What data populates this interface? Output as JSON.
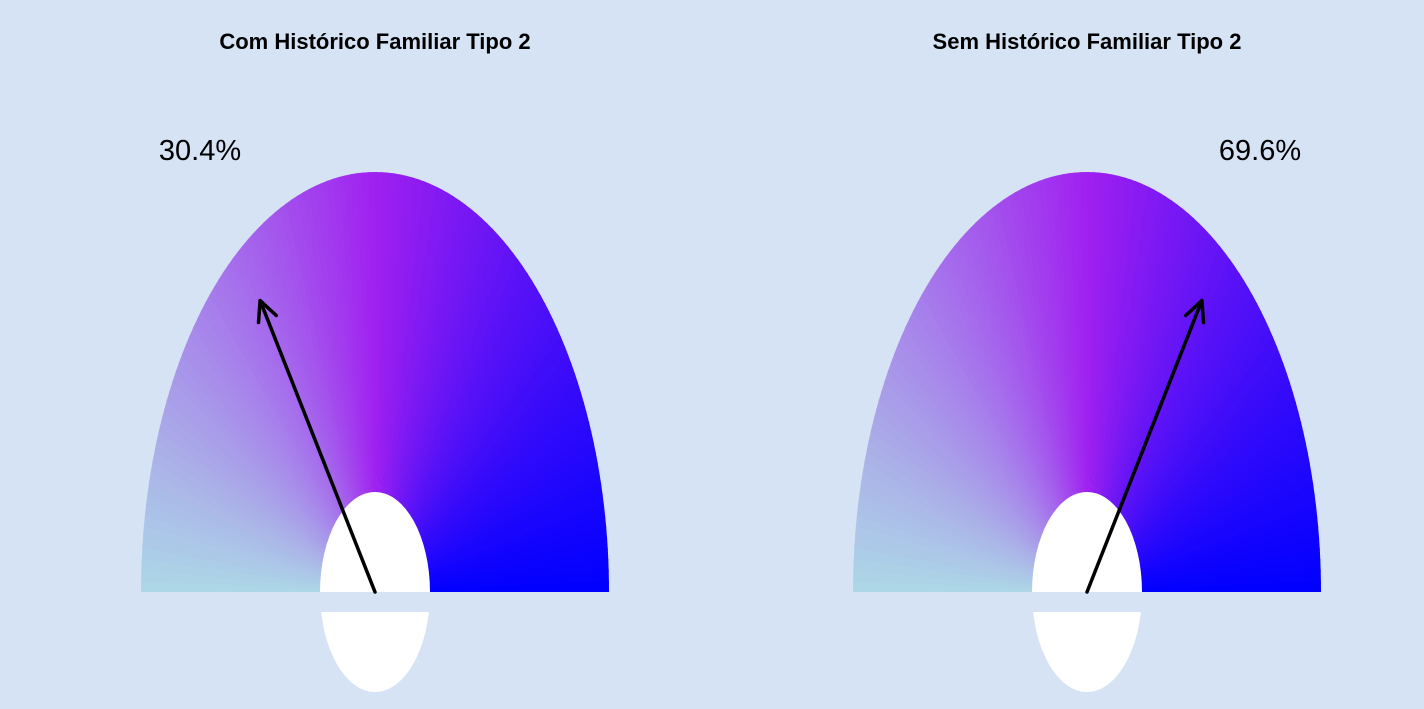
{
  "chart_data": [
    {
      "type": "gauge",
      "title": "Com Histórico Familiar Tipo 2",
      "value": 30.4,
      "value_label": "30.4%",
      "range": [
        0,
        100
      ],
      "gradient_colors": [
        "#add8e6",
        "#a020f0",
        "#0000ff"
      ]
    },
    {
      "type": "gauge",
      "title": "Sem Histórico Familiar Tipo 2",
      "value": 69.6,
      "value_label": "69.6%",
      "range": [
        0,
        100
      ],
      "gradient_colors": [
        "#add8e6",
        "#a020f0",
        "#0000ff"
      ]
    }
  ],
  "colors": {
    "background": "#d5e3f4",
    "hub": "#ffffff",
    "needle": "#000000"
  }
}
